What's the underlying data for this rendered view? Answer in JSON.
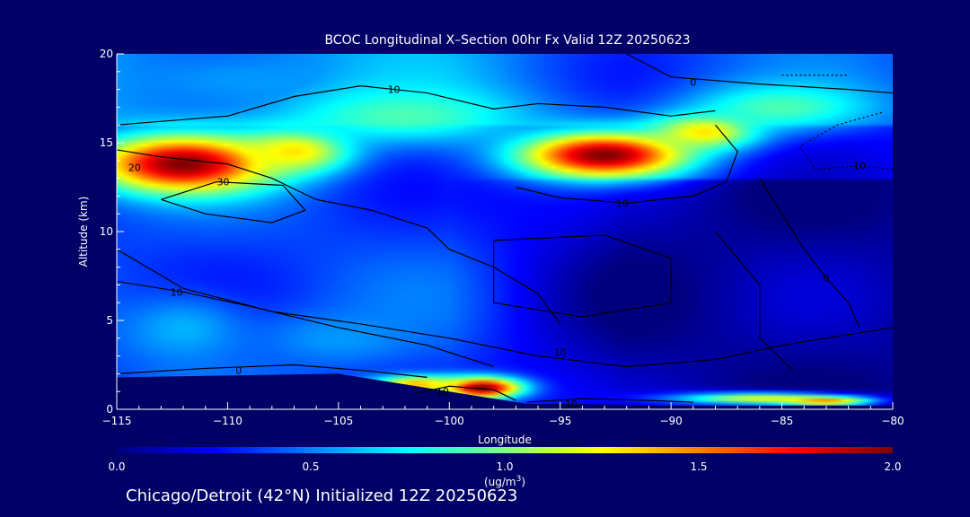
{
  "chart_data": {
    "type": "heatmap",
    "title": "BCOC Longitudinal X–Section 00hr  Fx Valid 12Z 20250623",
    "xlabel": "Longitude",
    "ylabel": "Altitude (km)",
    "xlim": [
      -115,
      -80
    ],
    "ylim": [
      0,
      20
    ],
    "x_ticks": [
      -115,
      -110,
      -105,
      -100,
      -95,
      -90,
      -85,
      -80
    ],
    "x_tick_labels": [
      "−115",
      "−110",
      "−105",
      "−100",
      "−95",
      "−90",
      "−85",
      "−80"
    ],
    "y_ticks": [
      0,
      5,
      10,
      15,
      20
    ],
    "y_tick_labels": [
      "0",
      "5",
      "10",
      "15",
      "20"
    ],
    "colorbar": {
      "range": [
        0.0,
        2.0
      ],
      "ticks": [
        0.0,
        0.5,
        1.0,
        1.5,
        2.0
      ],
      "tick_labels": [
        "0.0",
        "0.5",
        "1.0",
        "1.5",
        "2.0"
      ],
      "unit_label": "(ug/m",
      "unit_superscript": "3",
      "unit_close": ")"
    },
    "colormap": [
      "#00007f",
      "#0000ff",
      "#0080ff",
      "#00ffff",
      "#80ff80",
      "#ffff00",
      "#ff8000",
      "#ff0000",
      "#800000"
    ],
    "terrain_km": [
      [
        -115,
        1.8
      ],
      [
        -110,
        1.9
      ],
      [
        -105,
        2.0
      ],
      [
        -102,
        1.4
      ],
      [
        -100,
        1.0
      ],
      [
        -98,
        0.6
      ],
      [
        -96.5,
        0.3
      ],
      [
        -94,
        0.3
      ],
      [
        -90,
        0.2
      ],
      [
        -85,
        0.2
      ],
      [
        -80,
        0.2
      ]
    ],
    "features": [
      {
        "lon": -112,
        "alt": 13.8,
        "value": 2.0,
        "wlon": 4.0,
        "walt": 1.6
      },
      {
        "lon": -107,
        "alt": 14.5,
        "value": 1.3,
        "wlon": 2.5,
        "walt": 1.2
      },
      {
        "lon": -93,
        "alt": 14.3,
        "value": 2.0,
        "wlon": 3.8,
        "walt": 1.3
      },
      {
        "lon": -88.5,
        "alt": 15.6,
        "value": 1.3,
        "wlon": 2.5,
        "walt": 1.0
      },
      {
        "lon": -102,
        "alt": 16.5,
        "value": 0.9,
        "wlon": 5.0,
        "walt": 1.5
      },
      {
        "lon": -85,
        "alt": 17.0,
        "value": 0.9,
        "wlon": 4.0,
        "walt": 1.3
      },
      {
        "lon": -98.5,
        "alt": 1.2,
        "value": 2.0,
        "wlon": 1.8,
        "walt": 0.6
      },
      {
        "lon": -101.5,
        "alt": 1.4,
        "value": 1.4,
        "wlon": 2.0,
        "walt": 0.5
      },
      {
        "lon": -112,
        "alt": 4.5,
        "value": 0.6,
        "wlon": 3.0,
        "walt": 2.0
      },
      {
        "lon": -105,
        "alt": 4.0,
        "value": 0.55,
        "wlon": 3.5,
        "walt": 1.5
      },
      {
        "lon": -86,
        "alt": 0.6,
        "value": 1.2,
        "wlon": 4.0,
        "walt": 0.35
      },
      {
        "lon": -83,
        "alt": 0.45,
        "value": 1.5,
        "wlon": 2.0,
        "walt": 0.25
      },
      {
        "lon": -109,
        "alt": 18.5,
        "value": 0.55,
        "wlon": 6.0,
        "walt": 1.5
      },
      {
        "lon": -105,
        "alt": 9.0,
        "value": 0.15,
        "wlon": 3.0,
        "walt": 2.5
      },
      {
        "lon": -92,
        "alt": 6.0,
        "value": 0.0,
        "wlon": 5.0,
        "walt": 4.0
      }
    ],
    "contours": [
      {
        "label": "0",
        "label_at": [
          -89,
          18.4
        ],
        "points": [
          [
            -92,
            20
          ],
          [
            -90,
            18.7
          ],
          [
            -86,
            18.3
          ],
          [
            -82,
            18.0
          ],
          [
            -80,
            17.8
          ]
        ]
      },
      {
        "label": "10",
        "label_at": [
          -102.5,
          18.0
        ],
        "points": [
          [
            -115,
            16.0
          ],
          [
            -110,
            16.5
          ],
          [
            -107,
            17.6
          ],
          [
            -104,
            18.2
          ],
          [
            -101,
            17.8
          ],
          [
            -98,
            16.9
          ],
          [
            -96,
            17.2
          ],
          [
            -93,
            17.0
          ],
          [
            -90,
            16.5
          ],
          [
            -88,
            16.8
          ]
        ]
      },
      {
        "label": "20",
        "label_at": [
          -114.2,
          13.6
        ],
        "points": [
          [
            -115,
            14.6
          ],
          [
            -113,
            14.2
          ],
          [
            -110,
            13.8
          ],
          [
            -108,
            13.0
          ],
          [
            -106,
            11.8
          ],
          [
            -103.5,
            11.2
          ],
          [
            -101,
            10.2
          ],
          [
            -100,
            9.0
          ],
          [
            -98,
            8.0
          ],
          [
            -96,
            6.5
          ],
          [
            -95,
            4.8
          ]
        ]
      },
      {
        "label": "30",
        "label_at": [
          -110.2,
          12.8
        ],
        "points": [
          [
            -113,
            11.8
          ],
          [
            -110.5,
            12.8
          ],
          [
            -107.5,
            12.6
          ],
          [
            -106.5,
            11.2
          ],
          [
            -108,
            10.5
          ],
          [
            -111,
            11.0
          ],
          [
            -113,
            11.8
          ]
        ]
      },
      {
        "label": "10",
        "label_at": [
          -95,
          3.2
        ],
        "points": [
          [
            -115,
            9.0
          ],
          [
            -112,
            6.8
          ],
          [
            -108,
            5.5
          ],
          [
            -104,
            4.8
          ],
          [
            -100,
            4.0
          ],
          [
            -96,
            3.0
          ],
          [
            -92,
            2.4
          ],
          [
            -88,
            2.8
          ],
          [
            -85,
            3.6
          ],
          [
            -82,
            4.2
          ],
          [
            -80,
            4.6
          ]
        ]
      },
      {
        "label": "10",
        "label_at": [
          -112.3,
          6.6
        ],
        "points": [
          [
            -115,
            7.2
          ],
          [
            -112,
            6.6
          ],
          [
            -109,
            5.8
          ],
          [
            -105,
            4.6
          ],
          [
            -101,
            3.6
          ],
          [
            -98,
            2.4
          ]
        ]
      },
      {
        "label": "0",
        "label_at": [
          -109.5,
          2.2
        ],
        "points": [
          [
            -115,
            2.0
          ],
          [
            -111,
            2.3
          ],
          [
            -107,
            2.5
          ],
          [
            -104,
            2.2
          ],
          [
            -101,
            1.8
          ]
        ]
      },
      {
        "label": "10",
        "label_at": [
          -100.3,
          1.0
        ],
        "points": [
          [
            -101.5,
            0.9
          ],
          [
            -100,
            1.3
          ],
          [
            -98,
            1.1
          ],
          [
            -97,
            0.5
          ]
        ]
      },
      {
        "label": "10",
        "label_at": [
          -94.5,
          0.3
        ],
        "points": [
          [
            -96.5,
            0.4
          ],
          [
            -94,
            0.6
          ],
          [
            -91,
            0.5
          ],
          [
            -89,
            0.4
          ]
        ]
      },
      {
        "label": "10",
        "label_at": [
          -92.2,
          11.6
        ],
        "points": [
          [
            -97,
            12.5
          ],
          [
            -95,
            11.9
          ],
          [
            -92,
            11.6
          ],
          [
            -89,
            12.0
          ],
          [
            -87.5,
            12.8
          ],
          [
            -87,
            14.5
          ],
          [
            -88,
            16.0
          ]
        ]
      },
      {
        "label": "0",
        "label_at": [
          -83,
          7.4
        ],
        "points": [
          [
            -86,
            13.0
          ],
          [
            -85,
            11.0
          ],
          [
            -84,
            9.0
          ],
          [
            -83,
            7.4
          ],
          [
            -82,
            6.0
          ],
          [
            -81.5,
            4.6
          ]
        ]
      },
      {
        "label": "10",
        "label_at": [
          -81.5,
          13.7
        ],
        "points": [
          [
            -80.5,
            16.7
          ],
          [
            -82.5,
            16.0
          ],
          [
            -84.2,
            14.8
          ],
          [
            -83.5,
            13.5
          ],
          [
            -81.5,
            13.7
          ],
          [
            -80,
            13.5
          ]
        ],
        "dashed": true
      },
      {
        "label": "",
        "label_at": null,
        "points": [
          [
            -85,
            18.8
          ],
          [
            -82,
            18.8
          ]
        ],
        "dashed": true
      },
      {
        "label": "",
        "label_at": null,
        "points": [
          [
            -98,
            9.5
          ],
          [
            -93,
            9.8
          ],
          [
            -90,
            8.5
          ],
          [
            -90,
            6.0
          ],
          [
            -94,
            5.2
          ],
          [
            -98,
            6.0
          ],
          [
            -98,
            9.5
          ]
        ]
      },
      {
        "label": "",
        "label_at": null,
        "points": [
          [
            -88,
            10.0
          ],
          [
            -86,
            7.0
          ],
          [
            -86,
            4.0
          ],
          [
            -84.5,
            2.2
          ]
        ]
      }
    ],
    "grid": false
  },
  "footer": {
    "text": "Chicago/Detroit (42°N) Initialized 12Z 20250623"
  }
}
